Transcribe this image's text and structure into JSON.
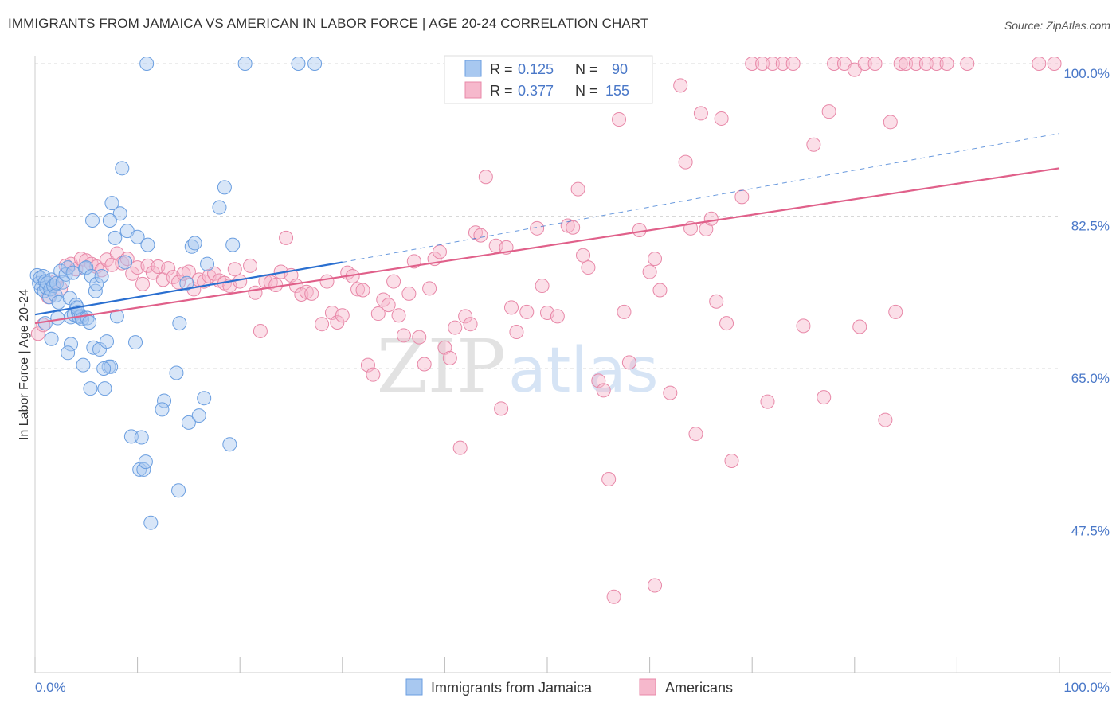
{
  "title": "IMMIGRANTS FROM JAMAICA VS AMERICAN IN LABOR FORCE | AGE 20-24 CORRELATION CHART",
  "source": "Source: ZipAtlas.com",
  "watermark": {
    "zip": "ZIP",
    "atlas": "atlas"
  },
  "colors": {
    "blue_fill": "#a8c8f0",
    "blue_stroke": "#6a9ee0",
    "blue_line": "#2a6fd0",
    "pink_fill": "#f6b8cc",
    "pink_stroke": "#e888a8",
    "pink_line": "#e0608a",
    "tick_text": "#4a78c8",
    "grid": "#d8d8d8"
  },
  "legend": {
    "rows": [
      {
        "r_label": "R =",
        "r_value": "0.125",
        "n_label": "N =",
        "n_value": "90"
      },
      {
        "r_label": "R =",
        "r_value": "0.377",
        "n_label": "N =",
        "n_value": "155"
      }
    ]
  },
  "chart_data": {
    "type": "scatter",
    "xlabel": "",
    "ylabel": "In Labor Force | Age 20-24",
    "x_tick_labels": [
      "0.0%",
      "100.0%"
    ],
    "y_tick_labels": [
      "100.0%",
      "82.5%",
      "65.0%",
      "47.5%"
    ],
    "xlim": [
      0,
      100
    ],
    "ylim": [
      30,
      102.5
    ],
    "y_ticks": [
      100,
      82.5,
      65,
      47.5
    ],
    "grid": true,
    "legend_position": "bottom",
    "series": [
      {
        "name": "Immigrants from Jamaica",
        "trend": {
          "x": [
            0,
            30
          ],
          "y": [
            71.2,
            77.2
          ],
          "dashed_extension_to": [
            100,
            92.0
          ]
        },
        "points": [
          [
            0.2,
            75.7
          ],
          [
            0.4,
            74.8
          ],
          [
            0.5,
            75.4
          ],
          [
            0.6,
            74.2
          ],
          [
            0.8,
            75.6
          ],
          [
            0.9,
            73.9
          ],
          [
            1.0,
            75.0
          ],
          [
            1.1,
            74.3
          ],
          [
            1.2,
            74.8
          ],
          [
            1.4,
            73.2
          ],
          [
            1.5,
            74.1
          ],
          [
            1.6,
            75.2
          ],
          [
            1.8,
            74.5
          ],
          [
            2.0,
            73.4
          ],
          [
            2.1,
            74.8
          ],
          [
            2.3,
            72.6
          ],
          [
            2.5,
            76.2
          ],
          [
            2.7,
            74.9
          ],
          [
            3.0,
            75.8
          ],
          [
            3.2,
            76.6
          ],
          [
            3.4,
            73.1
          ],
          [
            3.5,
            70.9
          ],
          [
            3.7,
            76.0
          ],
          [
            3.8,
            71.2
          ],
          [
            4.0,
            72.3
          ],
          [
            4.2,
            71.5
          ],
          [
            4.3,
            70.9
          ],
          [
            4.5,
            71.0
          ],
          [
            4.6,
            70.7
          ],
          [
            4.9,
            76.5
          ],
          [
            5.0,
            76.6
          ],
          [
            5.1,
            70.8
          ],
          [
            5.3,
            70.3
          ],
          [
            5.5,
            75.6
          ],
          [
            5.7,
            67.4
          ],
          [
            5.9,
            73.9
          ],
          [
            6.0,
            74.7
          ],
          [
            6.3,
            67.2
          ],
          [
            6.5,
            75.6
          ],
          [
            7.0,
            68.1
          ],
          [
            7.2,
            65.2
          ],
          [
            7.4,
            65.2
          ],
          [
            7.5,
            84.0
          ],
          [
            7.8,
            80.0
          ],
          [
            8.0,
            71.0
          ],
          [
            8.3,
            82.8
          ],
          [
            8.5,
            88.0
          ],
          [
            8.8,
            77.2
          ],
          [
            9.0,
            80.8
          ],
          [
            9.4,
            57.2
          ],
          [
            9.8,
            68.0
          ],
          [
            10.0,
            80.1
          ],
          [
            10.2,
            53.4
          ],
          [
            10.4,
            57.1
          ],
          [
            10.6,
            53.4
          ],
          [
            10.8,
            54.3
          ],
          [
            11.0,
            79.2
          ],
          [
            11.3,
            47.3
          ],
          [
            3.5,
            67.8
          ],
          [
            4.1,
            72.0
          ],
          [
            5.6,
            82.0
          ],
          [
            6.7,
            65.0
          ],
          [
            7.3,
            82.0
          ],
          [
            12.6,
            61.3
          ],
          [
            12.4,
            60.3
          ],
          [
            13.8,
            64.5
          ],
          [
            14.0,
            51.0
          ],
          [
            14.1,
            70.2
          ],
          [
            14.8,
            74.8
          ],
          [
            15.0,
            58.8
          ],
          [
            15.3,
            79.0
          ],
          [
            15.6,
            79.4
          ],
          [
            16.0,
            59.6
          ],
          [
            16.5,
            61.6
          ],
          [
            16.8,
            77.0
          ],
          [
            18.0,
            83.5
          ],
          [
            18.5,
            85.8
          ],
          [
            19.0,
            56.3
          ],
          [
            19.3,
            79.2
          ],
          [
            10.9,
            100
          ],
          [
            20.5,
            100
          ],
          [
            25.7,
            100
          ],
          [
            27.3,
            100
          ],
          [
            1.6,
            68.4
          ],
          [
            6.8,
            62.7
          ],
          [
            5.4,
            62.7
          ],
          [
            4.7,
            65.4
          ],
          [
            3.2,
            66.8
          ],
          [
            2.2,
            70.8
          ],
          [
            1.0,
            70.2
          ]
        ]
      },
      {
        "name": "Americans",
        "trend": {
          "x": [
            0,
            100
          ],
          "y": [
            70.2,
            88.0
          ]
        },
        "points": [
          [
            0.3,
            69.0
          ],
          [
            0.8,
            70.0
          ],
          [
            1.3,
            73.2
          ],
          [
            2.0,
            75.0
          ],
          [
            2.5,
            74.2
          ],
          [
            3.0,
            76.8
          ],
          [
            3.5,
            77.0
          ],
          [
            4.0,
            76.4
          ],
          [
            4.5,
            77.6
          ],
          [
            5.0,
            77.4
          ],
          [
            5.5,
            77.0
          ],
          [
            6.0,
            76.7
          ],
          [
            6.5,
            76.3
          ],
          [
            7.0,
            77.5
          ],
          [
            7.5,
            76.9
          ],
          [
            8.0,
            78.2
          ],
          [
            8.5,
            77.1
          ],
          [
            9.0,
            77.6
          ],
          [
            9.5,
            75.9
          ],
          [
            10.0,
            76.6
          ],
          [
            10.5,
            74.7
          ],
          [
            11.0,
            76.8
          ],
          [
            11.5,
            76.0
          ],
          [
            12.0,
            76.7
          ],
          [
            12.5,
            75.2
          ],
          [
            13.0,
            76.5
          ],
          [
            13.5,
            75.5
          ],
          [
            14.0,
            74.9
          ],
          [
            14.5,
            75.9
          ],
          [
            15.0,
            76.1
          ],
          [
            15.5,
            74.1
          ],
          [
            16.0,
            75.2
          ],
          [
            16.5,
            75.0
          ],
          [
            17.0,
            75.6
          ],
          [
            17.5,
            75.9
          ],
          [
            18.0,
            75.1
          ],
          [
            18.5,
            74.8
          ],
          [
            19.0,
            74.5
          ],
          [
            19.5,
            76.4
          ],
          [
            20.0,
            75.0
          ],
          [
            21.0,
            76.8
          ],
          [
            21.5,
            73.7
          ],
          [
            22.0,
            69.3
          ],
          [
            22.5,
            75.0
          ],
          [
            23.0,
            74.9
          ],
          [
            23.5,
            74.6
          ],
          [
            24.0,
            76.1
          ],
          [
            24.5,
            80.0
          ],
          [
            25.0,
            75.7
          ],
          [
            25.5,
            74.5
          ],
          [
            26.0,
            73.5
          ],
          [
            26.5,
            73.8
          ],
          [
            27.0,
            73.6
          ],
          [
            28.0,
            70.1
          ],
          [
            28.5,
            75.0
          ],
          [
            29.0,
            71.4
          ],
          [
            29.5,
            70.3
          ],
          [
            30.0,
            71.1
          ],
          [
            30.5,
            76.0
          ],
          [
            31.0,
            75.6
          ],
          [
            31.5,
            74.1
          ],
          [
            32.0,
            74.0
          ],
          [
            32.5,
            65.4
          ],
          [
            33.0,
            64.3
          ],
          [
            33.5,
            71.3
          ],
          [
            34.0,
            72.9
          ],
          [
            34.5,
            72.3
          ],
          [
            35.0,
            75.0
          ],
          [
            35.5,
            71.1
          ],
          [
            36.0,
            68.8
          ],
          [
            37.0,
            77.3
          ],
          [
            37.5,
            68.6
          ],
          [
            38.0,
            65.5
          ],
          [
            38.5,
            74.2
          ],
          [
            39.0,
            77.6
          ],
          [
            39.5,
            78.4
          ],
          [
            40.0,
            67.4
          ],
          [
            40.5,
            66.2
          ],
          [
            41.0,
            69.7
          ],
          [
            42.0,
            71.0
          ],
          [
            42.5,
            70.1
          ],
          [
            41.5,
            55.9
          ],
          [
            43.0,
            80.6
          ],
          [
            43.5,
            80.3
          ],
          [
            44.0,
            87.0
          ],
          [
            45.0,
            79.1
          ],
          [
            45.5,
            60.4
          ],
          [
            46.0,
            78.9
          ],
          [
            47.0,
            69.2
          ],
          [
            48.0,
            71.5
          ],
          [
            49.0,
            81.1
          ],
          [
            49.5,
            74.5
          ],
          [
            50.0,
            71.4
          ],
          [
            51.0,
            71.0
          ],
          [
            52.0,
            81.4
          ],
          [
            52.5,
            81.2
          ],
          [
            53.0,
            85.6
          ],
          [
            53.5,
            78.0
          ],
          [
            54.0,
            76.6
          ],
          [
            55.0,
            63.6
          ],
          [
            56.0,
            52.3
          ],
          [
            57.0,
            93.6
          ],
          [
            57.5,
            71.5
          ],
          [
            58.0,
            65.7
          ],
          [
            59.0,
            80.9
          ],
          [
            60.0,
            76.1
          ],
          [
            60.5,
            77.6
          ],
          [
            61.0,
            74.0
          ],
          [
            62.0,
            62.2
          ],
          [
            63.0,
            97.5
          ],
          [
            63.5,
            88.7
          ],
          [
            64.0,
            81.1
          ],
          [
            64.5,
            57.5
          ],
          [
            65.0,
            94.3
          ],
          [
            65.5,
            81.0
          ],
          [
            66.0,
            82.2
          ],
          [
            66.5,
            72.7
          ],
          [
            67.0,
            93.7
          ],
          [
            67.5,
            70.2
          ],
          [
            68.0,
            54.4
          ],
          [
            69.0,
            84.7
          ],
          [
            70.0,
            100
          ],
          [
            71.0,
            100
          ],
          [
            71.5,
            61.2
          ],
          [
            72.0,
            100
          ],
          [
            73.0,
            100
          ],
          [
            74.0,
            100
          ],
          [
            75.0,
            69.9
          ],
          [
            76.0,
            90.7
          ],
          [
            77.0,
            61.7
          ],
          [
            77.5,
            94.5
          ],
          [
            78.0,
            100
          ],
          [
            79.0,
            100
          ],
          [
            80.0,
            99.3
          ],
          [
            80.5,
            69.8
          ],
          [
            81.0,
            100
          ],
          [
            82.0,
            100
          ],
          [
            83.0,
            59.1
          ],
          [
            83.5,
            93.3
          ],
          [
            84.0,
            71.5
          ],
          [
            84.5,
            100
          ],
          [
            85.0,
            100
          ],
          [
            86.0,
            100
          ],
          [
            87.0,
            100
          ],
          [
            88.0,
            100
          ],
          [
            89.0,
            100
          ],
          [
            91.0,
            100
          ],
          [
            98.0,
            100
          ],
          [
            99.5,
            100
          ],
          [
            56.5,
            38.8
          ],
          [
            60.5,
            40.1
          ],
          [
            55.5,
            62.5
          ],
          [
            46.5,
            72.0
          ],
          [
            36.5,
            73.6
          ],
          [
            57.2,
            100
          ]
        ]
      }
    ]
  }
}
